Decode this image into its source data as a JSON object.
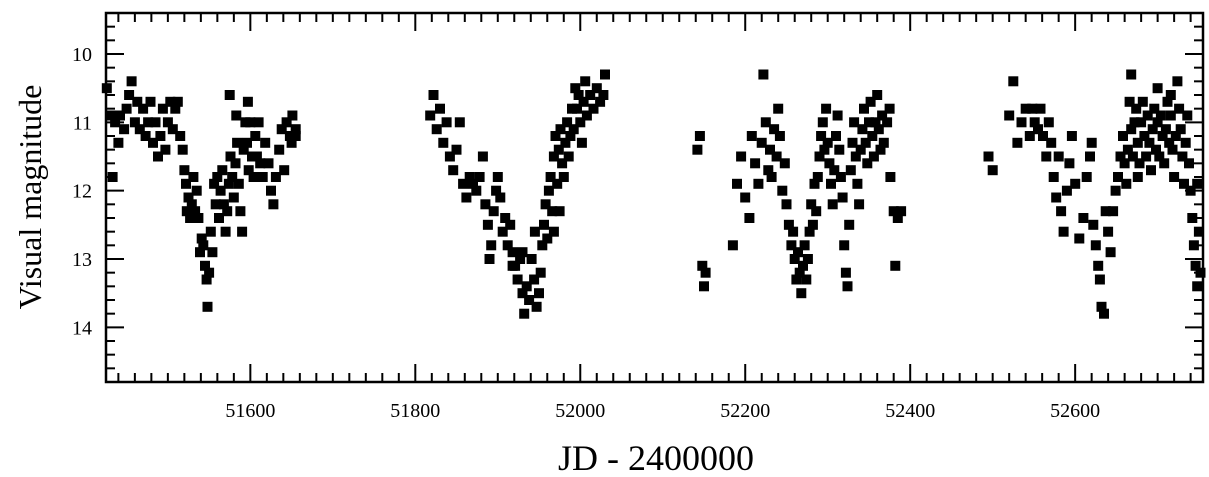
{
  "chart_data": {
    "type": "scatter",
    "xlabel": "JD - 2400000",
    "ylabel": "Visual  magnitude",
    "xlim": [
      51425,
      52755
    ],
    "ylim": [
      14.8,
      9.4
    ],
    "y_inverted": true,
    "grid": false,
    "legend": "none",
    "marker": "square",
    "marker_color": "#000000",
    "xticks": [
      51600,
      51800,
      52000,
      52200,
      52400,
      52600
    ],
    "yticks": [
      10,
      11,
      12,
      13,
      14
    ],
    "xtick_labels": [
      "51600",
      "51800",
      "52000",
      "52200",
      "52400",
      "52600"
    ],
    "ytick_labels": [
      "10",
      "11",
      "12",
      "13",
      "14"
    ],
    "points": [
      [
        51426,
        10.5
      ],
      [
        51430,
        10.9
      ],
      [
        51433,
        11.8
      ],
      [
        51436,
        11.0
      ],
      [
        51440,
        11.3
      ],
      [
        51442,
        10.9
      ],
      [
        51447,
        11.1
      ],
      [
        51450,
        10.8
      ],
      [
        51453,
        10.6
      ],
      [
        51456,
        10.4
      ],
      [
        51460,
        11.0
      ],
      [
        51463,
        10.7
      ],
      [
        51466,
        11.1
      ],
      [
        51470,
        10.8
      ],
      [
        51473,
        11.2
      ],
      [
        51476,
        11.0
      ],
      [
        51479,
        10.7
      ],
      [
        51482,
        11.3
      ],
      [
        51485,
        11.0
      ],
      [
        51488,
        11.5
      ],
      [
        51491,
        11.2
      ],
      [
        51494,
        10.8
      ],
      [
        51497,
        11.4
      ],
      [
        51500,
        11.0
      ],
      [
        51503,
        10.7
      ],
      [
        51506,
        11.1
      ],
      [
        51509,
        10.8
      ],
      [
        51512,
        10.7
      ],
      [
        51515,
        11.2
      ],
      [
        51518,
        11.4
      ],
      [
        51520,
        11.7
      ],
      [
        51522,
        11.9
      ],
      [
        51523,
        12.3
      ],
      [
        51525,
        12.1
      ],
      [
        51527,
        12.4
      ],
      [
        51529,
        12.2
      ],
      [
        51531,
        11.8
      ],
      [
        51533,
        12.3
      ],
      [
        51535,
        12.0
      ],
      [
        51537,
        12.4
      ],
      [
        51539,
        12.9
      ],
      [
        51541,
        12.7
      ],
      [
        51543,
        12.8
      ],
      [
        51545,
        13.1
      ],
      [
        51547,
        13.3
      ],
      [
        51548,
        13.7
      ],
      [
        51550,
        13.2
      ],
      [
        51552,
        12.6
      ],
      [
        51554,
        12.9
      ],
      [
        51556,
        11.9
      ],
      [
        51558,
        12.2
      ],
      [
        51560,
        11.8
      ],
      [
        51562,
        12.4
      ],
      [
        51564,
        12.0
      ],
      [
        51566,
        11.7
      ],
      [
        51568,
        12.2
      ],
      [
        51570,
        12.6
      ],
      [
        51572,
        12.3
      ],
      [
        51574,
        11.9
      ],
      [
        51576,
        11.5
      ],
      [
        51578,
        11.8
      ],
      [
        51580,
        12.1
      ],
      [
        51582,
        11.6
      ],
      [
        51584,
        11.3
      ],
      [
        51586,
        11.9
      ],
      [
        51588,
        12.3
      ],
      [
        51590,
        12.6
      ],
      [
        51592,
        11.4
      ],
      [
        51594,
        11.0
      ],
      [
        51596,
        11.3
      ],
      [
        51598,
        11.7
      ],
      [
        51600,
        11.0
      ],
      [
        51602,
        11.5
      ],
      [
        51604,
        11.8
      ],
      [
        51606,
        11.2
      ],
      [
        51608,
        11.5
      ],
      [
        51610,
        11.0
      ],
      [
        51612,
        11.6
      ],
      [
        51615,
        11.8
      ],
      [
        51618,
        11.3
      ],
      [
        51622,
        11.6
      ],
      [
        51625,
        12.0
      ],
      [
        51628,
        12.2
      ],
      [
        51631,
        11.8
      ],
      [
        51635,
        11.4
      ],
      [
        51638,
        11.1
      ],
      [
        51641,
        11.7
      ],
      [
        51644,
        11.0
      ],
      [
        51648,
        11.2
      ],
      [
        51651,
        10.9
      ],
      [
        51655,
        11.2
      ],
      [
        51655,
        11.1
      ],
      [
        51650,
        11.3
      ],
      [
        51583,
        10.9
      ],
      [
        51575,
        10.6
      ],
      [
        51597,
        10.7
      ],
      [
        51818,
        10.9
      ],
      [
        51822,
        10.6
      ],
      [
        51826,
        11.1
      ],
      [
        51830,
        10.8
      ],
      [
        51834,
        11.3
      ],
      [
        51838,
        11.0
      ],
      [
        51842,
        11.5
      ],
      [
        51846,
        11.7
      ],
      [
        51850,
        11.4
      ],
      [
        51854,
        11.0
      ],
      [
        51858,
        11.9
      ],
      [
        51862,
        12.1
      ],
      [
        51866,
        11.8
      ],
      [
        51870,
        11.9
      ],
      [
        51874,
        12.0
      ],
      [
        51878,
        11.8
      ],
      [
        51882,
        11.5
      ],
      [
        51885,
        12.2
      ],
      [
        51888,
        12.5
      ],
      [
        51890,
        13.0
      ],
      [
        51892,
        12.8
      ],
      [
        51895,
        12.3
      ],
      [
        51898,
        12.0
      ],
      [
        51900,
        11.8
      ],
      [
        51903,
        12.1
      ],
      [
        51906,
        12.6
      ],
      [
        51909,
        12.4
      ],
      [
        51912,
        12.8
      ],
      [
        51915,
        12.5
      ],
      [
        51918,
        12.9
      ],
      [
        51921,
        13.1
      ],
      [
        51924,
        13.3
      ],
      [
        51927,
        13.0
      ],
      [
        51930,
        13.5
      ],
      [
        51932,
        13.8
      ],
      [
        51935,
        13.4
      ],
      [
        51938,
        13.6
      ],
      [
        51941,
        13.0
      ],
      [
        51944,
        13.3
      ],
      [
        51947,
        13.7
      ],
      [
        51950,
        13.5
      ],
      [
        51952,
        13.2
      ],
      [
        51954,
        12.8
      ],
      [
        51956,
        12.5
      ],
      [
        51958,
        12.2
      ],
      [
        51960,
        12.7
      ],
      [
        51962,
        12.0
      ],
      [
        51964,
        11.8
      ],
      [
        51966,
        12.3
      ],
      [
        51968,
        11.5
      ],
      [
        51970,
        11.2
      ],
      [
        51972,
        11.9
      ],
      [
        51974,
        11.4
      ],
      [
        51976,
        11.1
      ],
      [
        51978,
        11.6
      ],
      [
        51980,
        11.8
      ],
      [
        51982,
        11.3
      ],
      [
        51984,
        11.0
      ],
      [
        51986,
        11.5
      ],
      [
        51988,
        11.2
      ],
      [
        51990,
        10.8
      ],
      [
        51992,
        11.1
      ],
      [
        51994,
        10.5
      ],
      [
        51996,
        10.8
      ],
      [
        51998,
        10.6
      ],
      [
        52000,
        11.0
      ],
      [
        52002,
        11.3
      ],
      [
        52004,
        10.7
      ],
      [
        52006,
        10.4
      ],
      [
        52008,
        10.9
      ],
      [
        52012,
        10.6
      ],
      [
        52016,
        10.8
      ],
      [
        52020,
        10.5
      ],
      [
        52024,
        10.7
      ],
      [
        52028,
        10.6
      ],
      [
        52030,
        10.3
      ],
      [
        51975,
        12.3
      ],
      [
        51968,
        12.6
      ],
      [
        51945,
        12.6
      ],
      [
        51930,
        12.9
      ],
      [
        51918,
        13.1
      ],
      [
        52145,
        11.2
      ],
      [
        52142,
        11.4
      ],
      [
        52148,
        13.1
      ],
      [
        52150,
        13.4
      ],
      [
        52152,
        13.2
      ],
      [
        52185,
        12.8
      ],
      [
        52190,
        11.9
      ],
      [
        52195,
        11.5
      ],
      [
        52200,
        12.1
      ],
      [
        52205,
        12.4
      ],
      [
        52208,
        11.2
      ],
      [
        52212,
        11.6
      ],
      [
        52216,
        11.9
      ],
      [
        52220,
        11.3
      ],
      [
        52222,
        10.3
      ],
      [
        52225,
        11.0
      ],
      [
        52228,
        11.7
      ],
      [
        52230,
        11.4
      ],
      [
        52232,
        11.8
      ],
      [
        52235,
        11.1
      ],
      [
        52238,
        11.5
      ],
      [
        52240,
        10.8
      ],
      [
        52242,
        11.2
      ],
      [
        52245,
        12.0
      ],
      [
        52248,
        11.6
      ],
      [
        52250,
        12.2
      ],
      [
        52253,
        12.5
      ],
      [
        52256,
        12.8
      ],
      [
        52258,
        12.6
      ],
      [
        52260,
        13.0
      ],
      [
        52262,
        13.3
      ],
      [
        52264,
        12.9
      ],
      [
        52266,
        13.2
      ],
      [
        52268,
        13.5
      ],
      [
        52270,
        13.1
      ],
      [
        52272,
        12.8
      ],
      [
        52274,
        13.3
      ],
      [
        52276,
        13.0
      ],
      [
        52278,
        12.6
      ],
      [
        52280,
        12.2
      ],
      [
        52282,
        12.5
      ],
      [
        52284,
        11.9
      ],
      [
        52286,
        12.3
      ],
      [
        52288,
        11.8
      ],
      [
        52290,
        11.5
      ],
      [
        52292,
        11.2
      ],
      [
        52294,
        11.0
      ],
      [
        52296,
        11.4
      ],
      [
        52298,
        10.8
      ],
      [
        52300,
        11.3
      ],
      [
        52302,
        11.6
      ],
      [
        52304,
        11.9
      ],
      [
        52306,
        12.2
      ],
      [
        52308,
        11.7
      ],
      [
        52310,
        11.2
      ],
      [
        52312,
        10.9
      ],
      [
        52314,
        11.4
      ],
      [
        52316,
        11.8
      ],
      [
        52318,
        12.1
      ],
      [
        52320,
        12.8
      ],
      [
        52322,
        13.2
      ],
      [
        52324,
        13.4
      ],
      [
        52326,
        12.5
      ],
      [
        52328,
        11.7
      ],
      [
        52330,
        11.3
      ],
      [
        52332,
        11.0
      ],
      [
        52334,
        11.5
      ],
      [
        52336,
        11.9
      ],
      [
        52338,
        12.2
      ],
      [
        52340,
        11.4
      ],
      [
        52342,
        11.1
      ],
      [
        52344,
        10.8
      ],
      [
        52346,
        11.3
      ],
      [
        52348,
        11.6
      ],
      [
        52350,
        11.0
      ],
      [
        52352,
        10.7
      ],
      [
        52354,
        11.2
      ],
      [
        52356,
        11.5
      ],
      [
        52358,
        11.0
      ],
      [
        52360,
        10.6
      ],
      [
        52362,
        11.1
      ],
      [
        52364,
        11.4
      ],
      [
        52366,
        10.9
      ],
      [
        52368,
        11.3
      ],
      [
        52372,
        11.0
      ],
      [
        52376,
        11.8
      ],
      [
        52380,
        12.3
      ],
      [
        52382,
        13.1
      ],
      [
        52385,
        12.4
      ],
      [
        52389,
        12.3
      ],
      [
        52375,
        10.8
      ],
      [
        52495,
        11.5
      ],
      [
        52500,
        11.7
      ],
      [
        52520,
        10.9
      ],
      [
        52525,
        10.4
      ],
      [
        52530,
        11.3
      ],
      [
        52535,
        11.0
      ],
      [
        52540,
        10.8
      ],
      [
        52545,
        11.2
      ],
      [
        52548,
        10.8
      ],
      [
        52551,
        11.0
      ],
      [
        52555,
        11.1
      ],
      [
        52558,
        10.8
      ],
      [
        52561,
        11.2
      ],
      [
        52565,
        11.5
      ],
      [
        52568,
        11.0
      ],
      [
        52571,
        11.3
      ],
      [
        52574,
        11.8
      ],
      [
        52577,
        12.1
      ],
      [
        52580,
        11.5
      ],
      [
        52583,
        12.3
      ],
      [
        52586,
        12.6
      ],
      [
        52590,
        12.0
      ],
      [
        52593,
        11.6
      ],
      [
        52596,
        11.2
      ],
      [
        52600,
        11.9
      ],
      [
        52605,
        12.7
      ],
      [
        52610,
        12.4
      ],
      [
        52614,
        11.8
      ],
      [
        52618,
        11.5
      ],
      [
        52620,
        11.3
      ],
      [
        52622,
        12.5
      ],
      [
        52625,
        12.8
      ],
      [
        52628,
        13.1
      ],
      [
        52630,
        13.3
      ],
      [
        52632,
        13.7
      ],
      [
        52635,
        13.8
      ],
      [
        52637,
        12.3
      ],
      [
        52640,
        12.6
      ],
      [
        52643,
        12.9
      ],
      [
        52646,
        12.3
      ],
      [
        52649,
        12.0
      ],
      [
        52652,
        11.8
      ],
      [
        52655,
        11.5
      ],
      [
        52658,
        11.2
      ],
      [
        52660,
        11.6
      ],
      [
        52662,
        11.9
      ],
      [
        52664,
        11.4
      ],
      [
        52666,
        10.7
      ],
      [
        52668,
        11.1
      ],
      [
        52670,
        11.5
      ],
      [
        52672,
        11.0
      ],
      [
        52674,
        10.8
      ],
      [
        52676,
        11.3
      ],
      [
        52678,
        11.6
      ],
      [
        52680,
        11.0
      ],
      [
        52682,
        10.7
      ],
      [
        52684,
        11.2
      ],
      [
        52686,
        11.5
      ],
      [
        52688,
        10.9
      ],
      [
        52690,
        11.3
      ],
      [
        52692,
        11.7
      ],
      [
        52694,
        11.1
      ],
      [
        52696,
        10.8
      ],
      [
        52698,
        11.4
      ],
      [
        52700,
        11.0
      ],
      [
        52702,
        11.5
      ],
      [
        52704,
        10.9
      ],
      [
        52706,
        11.2
      ],
      [
        52708,
        11.6
      ],
      [
        52710,
        11.1
      ],
      [
        52712,
        10.7
      ],
      [
        52714,
        11.3
      ],
      [
        52716,
        10.9
      ],
      [
        52718,
        11.4
      ],
      [
        52720,
        11.8
      ],
      [
        52722,
        11.2
      ],
      [
        52724,
        10.4
      ],
      [
        52726,
        10.8
      ],
      [
        52728,
        11.1
      ],
      [
        52730,
        11.5
      ],
      [
        52732,
        11.9
      ],
      [
        52734,
        11.3
      ],
      [
        52736,
        10.9
      ],
      [
        52738,
        11.6
      ],
      [
        52740,
        12.0
      ],
      [
        52742,
        12.4
      ],
      [
        52744,
        12.8
      ],
      [
        52746,
        13.1
      ],
      [
        52748,
        13.4
      ],
      [
        52750,
        12.6
      ],
      [
        52752,
        13.2
      ],
      [
        52668,
        10.3
      ],
      [
        52716,
        10.6
      ],
      [
        52700,
        10.5
      ],
      [
        52676,
        11.8
      ],
      [
        52748,
        11.9
      ]
    ]
  }
}
